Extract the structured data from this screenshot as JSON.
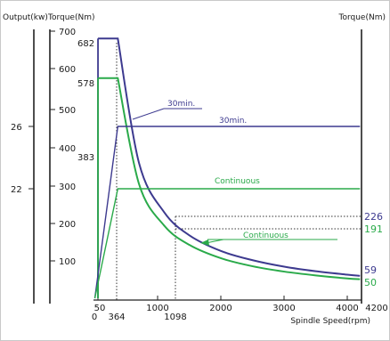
{
  "colors": {
    "purple": "#3d3a8f",
    "green": "#2aaa4a",
    "axis": "#222222",
    "text": "#1a1a1a"
  },
  "chart_data": {
    "type": "line",
    "xlabel": "Spindle Speed(rpm)",
    "left_outer_label": "Output(kw)",
    "left_inner_label": "Torque(Nm)",
    "right_label": "Torque(Nm)",
    "x_ticks": [
      "1000",
      "2000",
      "3000",
      "4000"
    ],
    "x_ticks_upper": [
      "50",
      "1098",
      "4200"
    ],
    "x_ticks_lower": [
      "0",
      "364"
    ],
    "torque_ticks": [
      "100",
      "200",
      "300",
      "400",
      "500",
      "600",
      "700"
    ],
    "output_ticks": [
      "26",
      "22"
    ],
    "torque_range": [
      0,
      700
    ],
    "speed_range": [
      0,
      4200
    ],
    "left_value_labels": [
      "682",
      "578",
      "383"
    ],
    "right_value_labels": [
      {
        "text": "226",
        "color": "purple"
      },
      {
        "text": "191",
        "color": "green"
      },
      {
        "text": "59",
        "color": "purple"
      },
      {
        "text": "50",
        "color": "green"
      }
    ],
    "annotations": [
      {
        "text": "30min.",
        "color": "purple"
      },
      {
        "text": "30min.",
        "color": "purple"
      },
      {
        "text": "Continuous",
        "color": "green"
      },
      {
        "text": "Continuous",
        "color": "green"
      }
    ],
    "series": [
      {
        "name": "30min.",
        "kind": "torque",
        "color": "purple",
        "x": [
          50,
          364,
          700,
          1098,
          1500,
          2000,
          2500,
          3000,
          3500,
          4000,
          4200
        ],
        "y": [
          682,
          682,
          355,
          226,
          165,
          124,
          100,
          83,
          71,
          62,
          59
        ]
      },
      {
        "name": "Continuous",
        "kind": "torque",
        "color": "green",
        "x": [
          50,
          364,
          700,
          1098,
          1500,
          2000,
          2500,
          3000,
          3500,
          4000,
          4200
        ],
        "y": [
          578,
          578,
          300,
          191,
          140,
          105,
          84,
          70,
          60,
          52,
          50
        ]
      },
      {
        "name": "30min.",
        "kind": "power",
        "color": "purple",
        "x": [
          0,
          364,
          4200
        ],
        "y": [
          0,
          26,
          26
        ]
      },
      {
        "name": "Continuous",
        "kind": "power",
        "color": "green",
        "x": [
          0,
          364,
          4200
        ],
        "y": [
          0,
          22,
          22
        ]
      }
    ]
  }
}
